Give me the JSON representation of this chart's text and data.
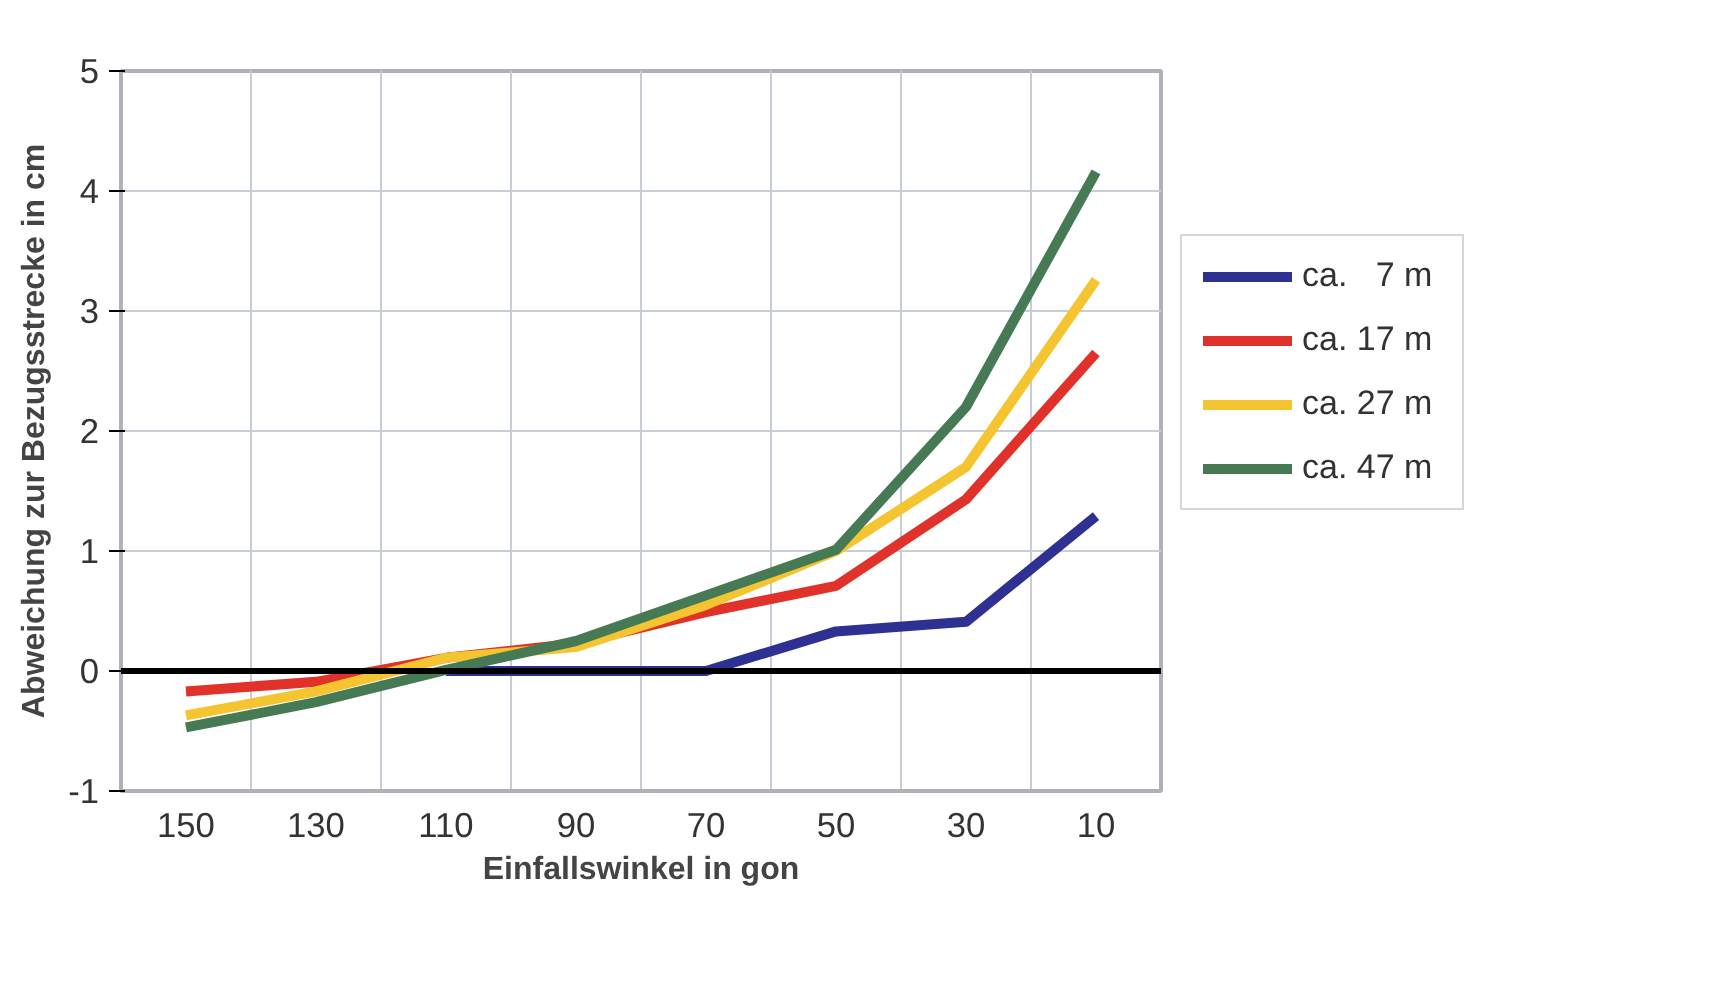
{
  "chart_data": {
    "type": "line",
    "xlabel": "Einfallswinkel in gon",
    "ylabel": "Abweichung zur Bezugsstrecke in cm",
    "categories": [
      "150",
      "130",
      "110",
      "90",
      "70",
      "50",
      "30",
      "10"
    ],
    "series": [
      {
        "name": "ca.   7 m",
        "color": "#2e3192",
        "values": [
          null,
          null,
          0,
          0,
          0,
          0.33,
          0.41,
          1.29
        ]
      },
      {
        "name": "ca. 17 m",
        "color": "#e0322a",
        "values": [
          -0.17,
          -0.09,
          0.11,
          0.23,
          0.49,
          0.71,
          1.43,
          2.65
        ]
      },
      {
        "name": "ca. 27 m",
        "color": "#f5c431",
        "values": [
          -0.37,
          -0.17,
          0.11,
          0.2,
          0.55,
          1.0,
          1.7,
          3.26
        ]
      },
      {
        "name": "ca. 47 m",
        "color": "#467a54",
        "values": [
          -0.47,
          -0.26,
          0.01,
          0.25,
          0.63,
          1.01,
          2.2,
          4.16
        ]
      }
    ],
    "ylim": [
      -1,
      5
    ],
    "yticks": [
      -1,
      0,
      1,
      2,
      3,
      4,
      5
    ],
    "grid": true,
    "legend": "right",
    "marker": "none",
    "line_style": "solid",
    "ref_lines": [
      {
        "axis": "y",
        "value": 0,
        "color": "#000000"
      }
    ]
  }
}
